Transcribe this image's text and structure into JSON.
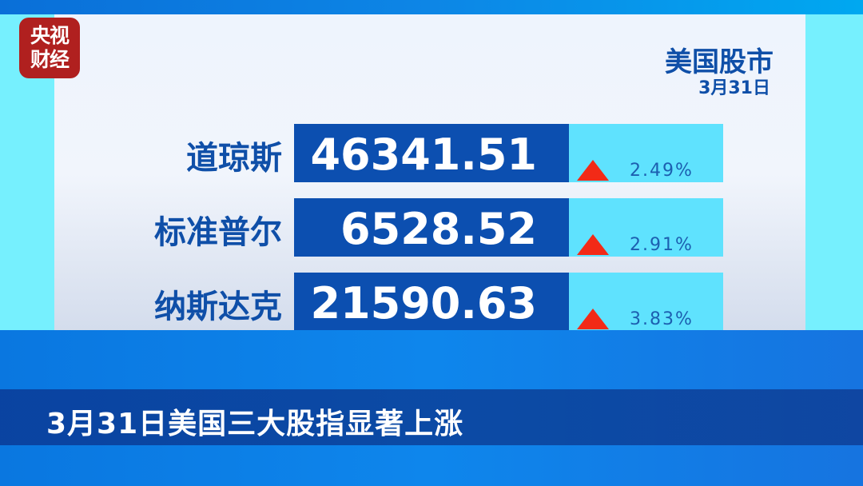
{
  "logo": {
    "text_line1": "央视",
    "text_line2": "财经"
  },
  "header": {
    "title": "美国股市",
    "date": "3月31日"
  },
  "indices": [
    {
      "name": "道琼斯",
      "value": "46341.51",
      "change": "2.49%",
      "direction": "up"
    },
    {
      "name": "标准普尔",
      "value": "6528.52",
      "change": "2.91%",
      "direction": "up"
    },
    {
      "name": "纳斯达克",
      "value": "21590.63",
      "change": "3.83%",
      "direction": "up"
    }
  ],
  "subtitle": "3月31日美国三大股指显著上涨",
  "colors": {
    "value_box": "#0c4fb0",
    "change_box": "#5fe2fe",
    "up_arrow": "#f22a17",
    "logo": "#b0201f"
  }
}
